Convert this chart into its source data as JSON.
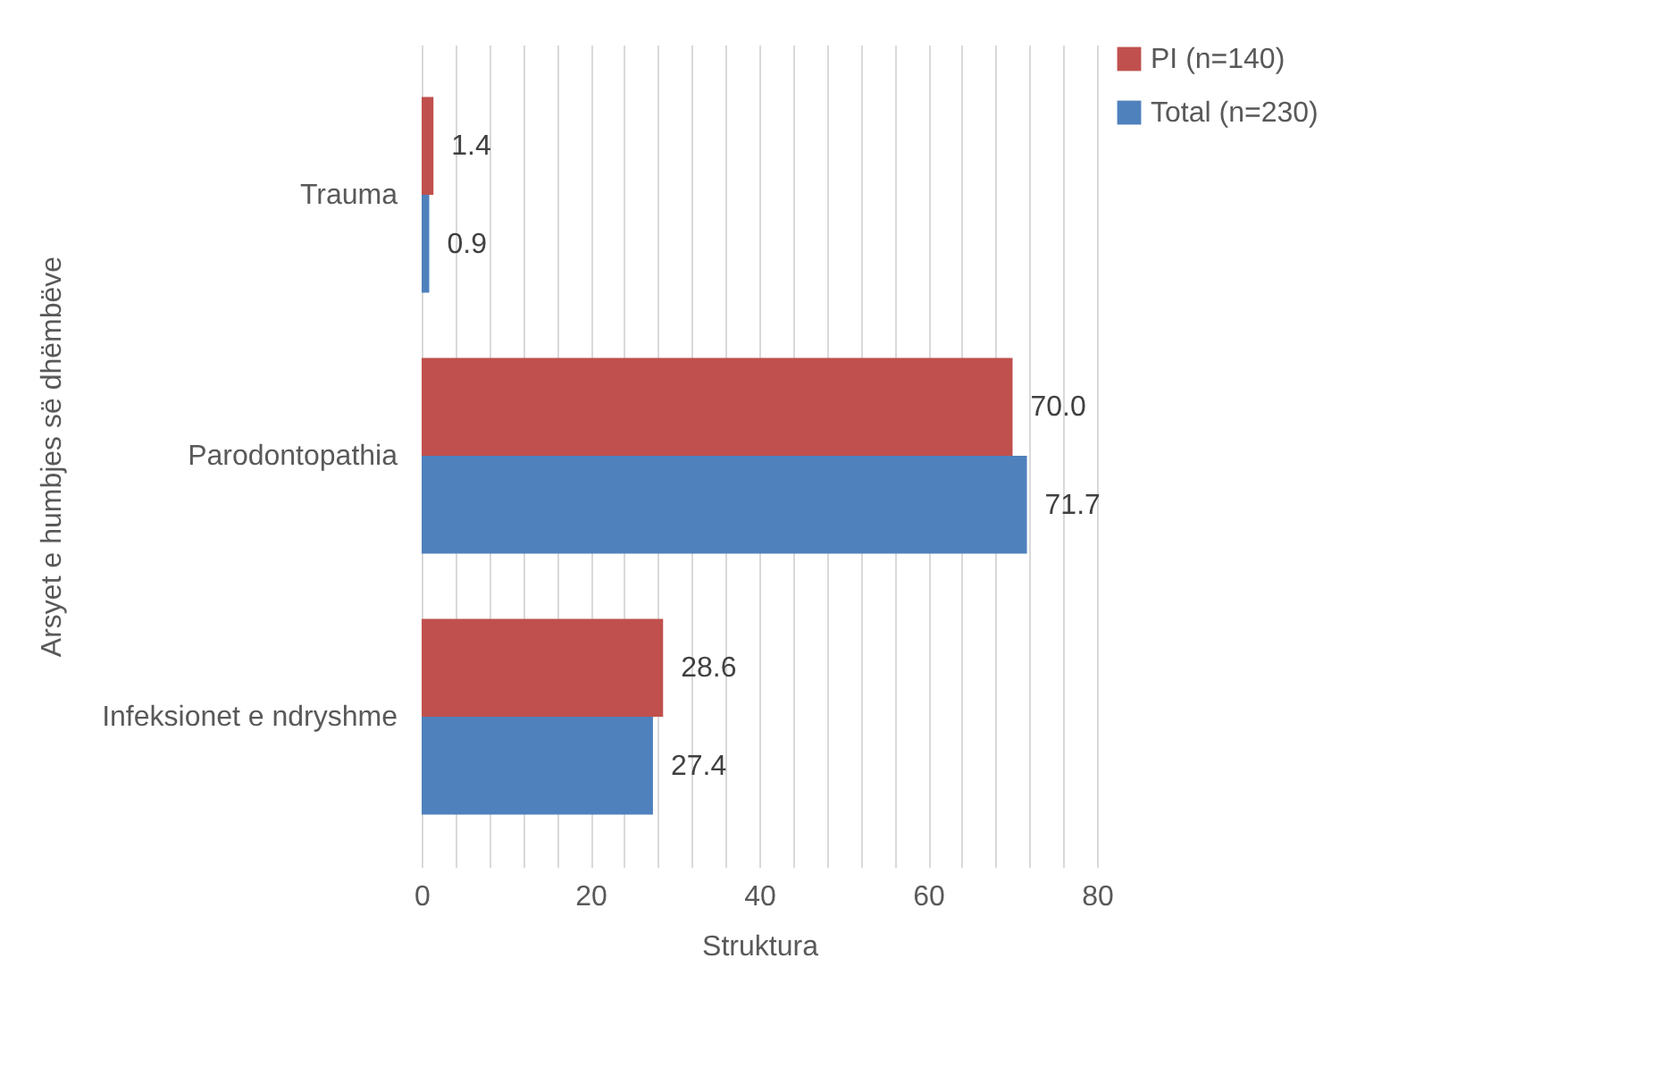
{
  "chart_data": {
    "type": "bar",
    "orientation": "horizontal",
    "xlabel": "Struktura",
    "ylabel": "Arsyet e humbjes së dhëmbëve",
    "categories": [
      "Trauma",
      "Parodontopathia",
      "Infeksionet e ndryshme"
    ],
    "series": [
      {
        "name": "PI (n=140)",
        "color": "#c0504d",
        "values": [
          1.4,
          70.0,
          28.6
        ],
        "value_labels": [
          "1.4",
          "70.0",
          "28.6"
        ]
      },
      {
        "name": "Total (n=230)",
        "color": "#4f81bd",
        "values": [
          0.9,
          71.7,
          27.4
        ],
        "value_labels": [
          "0.9",
          "71.7",
          "27.4"
        ]
      }
    ],
    "xlim": [
      0,
      80
    ],
    "xticks": [
      0,
      {
        "value": 4,
        "label": null
      },
      {
        "value": 8,
        "label": null
      },
      {
        "value": 12,
        "label": null
      },
      {
        "value": 16,
        "label": null
      },
      20,
      {
        "value": 24,
        "label": null
      },
      {
        "value": 28,
        "label": null
      },
      {
        "value": 32,
        "label": null
      },
      {
        "value": 36,
        "label": null
      },
      40,
      {
        "value": 44,
        "label": null
      },
      {
        "value": 48,
        "label": null
      },
      {
        "value": 52,
        "label": null
      },
      {
        "value": 56,
        "label": null
      },
      60,
      {
        "value": 64,
        "label": null
      },
      {
        "value": 68,
        "label": null
      },
      {
        "value": 72,
        "label": null
      },
      {
        "value": 76,
        "label": null
      },
      80
    ],
    "grid": true,
    "legend": "right"
  }
}
